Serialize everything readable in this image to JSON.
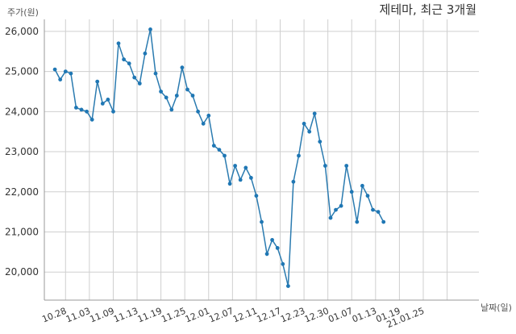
{
  "chart_data": {
    "type": "line",
    "title": "제테마, 최근 3개월",
    "ylabel": "주가(원)",
    "xlabel": "날짜(일)",
    "ylim": [
      19300,
      26300
    ],
    "yticks": [
      20000,
      21000,
      22000,
      23000,
      24000,
      25000,
      26000
    ],
    "ytick_labels": [
      "20,000",
      "21,000",
      "22,000",
      "23,000",
      "24,000",
      "25,000",
      "26,000"
    ],
    "xlim": [
      -2,
      80
    ],
    "xtick_positions": [
      2,
      6.5,
      11,
      15.5,
      20,
      24.5,
      29,
      33.5,
      38,
      42.5,
      47,
      51.5,
      56,
      60.5,
      65,
      69.5,
      74
    ],
    "xtick_labels": [
      "10.28",
      "11.03",
      "11.09",
      "11.13",
      "11.19",
      "11.25",
      "12.01",
      "12.07",
      "12.11",
      "12.17",
      "12.23",
      "12.30",
      "01.07",
      "01.13",
      "01.19",
      "21.01.25",
      ""
    ],
    "grid": true,
    "series": [
      {
        "color": "#1f77b4",
        "values": [
          25050,
          24800,
          25000,
          24950,
          24100,
          24050,
          24000,
          23800,
          24750,
          24200,
          24300,
          24000,
          25700,
          25300,
          25200,
          24850,
          24700,
          25450,
          26050,
          24950,
          24500,
          24350,
          24050,
          24400,
          25100,
          24550,
          24400,
          24000,
          23700,
          23900,
          23150,
          23050,
          22900,
          22200,
          22650,
          22300,
          22600,
          22350,
          21900,
          21250,
          20450,
          20800,
          20600,
          20200,
          19650,
          22250,
          22900,
          23700,
          23500,
          23950,
          23250,
          22650,
          21350,
          21550,
          21650,
          22650,
          22000,
          21250,
          22150,
          21900,
          21550,
          21500,
          21250
        ]
      }
    ]
  }
}
